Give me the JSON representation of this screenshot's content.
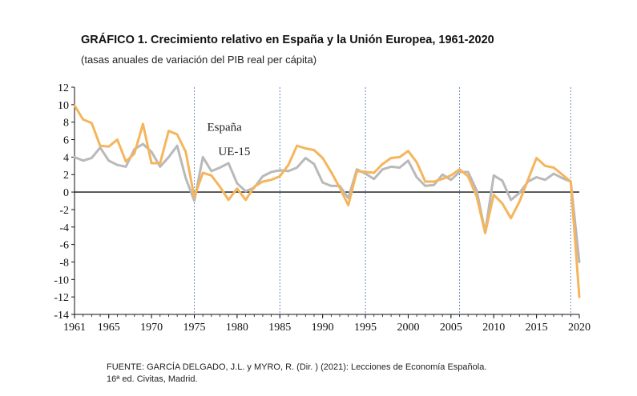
{
  "header": {
    "title": "GRÁFICO 1. Crecimiento relativo en España y la Unión Europea, 1961-2020",
    "subtitle": "(tasas anuales de variación del PIB real per cápita)"
  },
  "source": {
    "line1": "FUENTE: GARCÍA DELGADO, J.L. y  MYRO, R. (Dir. ) (2021): Lecciones de Economía Española.",
    "line2": "16ª ed. Civitas, Madrid."
  },
  "chart_data": {
    "type": "line",
    "ylim": [
      -14,
      12
    ],
    "yticks": [
      "12",
      "10",
      "8",
      "6",
      "4",
      "2",
      "0",
      "-2",
      "-4",
      "-6",
      "-8",
      "-10",
      "-12",
      "-14"
    ],
    "xlim": [
      1961,
      2020
    ],
    "xticks": [
      "1961",
      "1965",
      "1970",
      "1975",
      "1980",
      "1985",
      "1990",
      "1995",
      "2000",
      "2005",
      "2010",
      "2015",
      "2020"
    ],
    "vlines": [
      1975,
      1985,
      1995,
      2006,
      2019
    ],
    "grid": false,
    "legend": "inline labels",
    "colors": {
      "spain": "#f5b55c",
      "eu": "#b9b9b9",
      "axis": "#111111",
      "vline": "#6a8fc7"
    },
    "x": [
      1961,
      1962,
      1963,
      1964,
      1965,
      1966,
      1967,
      1968,
      1969,
      1970,
      1971,
      1972,
      1973,
      1974,
      1975,
      1976,
      1977,
      1978,
      1979,
      1980,
      1981,
      1982,
      1983,
      1984,
      1985,
      1986,
      1987,
      1988,
      1989,
      1990,
      1991,
      1992,
      1993,
      1994,
      1995,
      1996,
      1997,
      1998,
      1999,
      2000,
      2001,
      2002,
      2003,
      2004,
      2005,
      2006,
      2007,
      2008,
      2009,
      2010,
      2011,
      2012,
      2013,
      2014,
      2015,
      2016,
      2017,
      2018,
      2019,
      2020
    ],
    "series": [
      {
        "name": "España",
        "values": [
          9.9,
          8.3,
          7.9,
          5.3,
          5.2,
          6.0,
          3.5,
          4.4,
          7.8,
          3.3,
          3.3,
          7.0,
          6.6,
          4.6,
          -0.6,
          2.2,
          1.9,
          0.6,
          -0.9,
          0.4,
          -0.9,
          0.6,
          1.2,
          1.4,
          1.8,
          3.1,
          5.3,
          5.0,
          4.8,
          3.9,
          2.3,
          0.5,
          -1.5,
          2.4,
          2.3,
          2.2,
          3.2,
          3.9,
          4.0,
          4.7,
          3.4,
          1.2,
          1.2,
          1.5,
          1.9,
          2.6,
          1.8,
          -0.5,
          -4.7,
          -0.3,
          -1.3,
          -3.0,
          -1.1,
          1.4,
          3.9,
          3.0,
          2.8,
          2.0,
          1.2,
          -12.0
        ]
      },
      {
        "name": "UE-15",
        "values": [
          4.0,
          3.6,
          3.9,
          5.1,
          3.6,
          3.1,
          2.9,
          4.9,
          5.5,
          4.6,
          2.9,
          4.0,
          5.3,
          1.6,
          -1.0,
          4.0,
          2.4,
          2.8,
          3.3,
          1.0,
          0.1,
          0.5,
          1.8,
          2.3,
          2.5,
          2.4,
          2.8,
          3.9,
          3.2,
          1.1,
          0.7,
          0.7,
          -0.7,
          2.6,
          2.1,
          1.5,
          2.6,
          2.9,
          2.8,
          3.6,
          1.7,
          0.7,
          0.8,
          2.0,
          1.4,
          2.3,
          2.3,
          0.2,
          -4.6,
          1.9,
          1.3,
          -0.9,
          -0.1,
          1.2,
          1.7,
          1.4,
          2.1,
          1.6,
          1.2,
          -8.0
        ]
      }
    ],
    "labels": [
      {
        "text": "España",
        "series": 0
      },
      {
        "text": "UE-15",
        "series": 1
      }
    ]
  }
}
